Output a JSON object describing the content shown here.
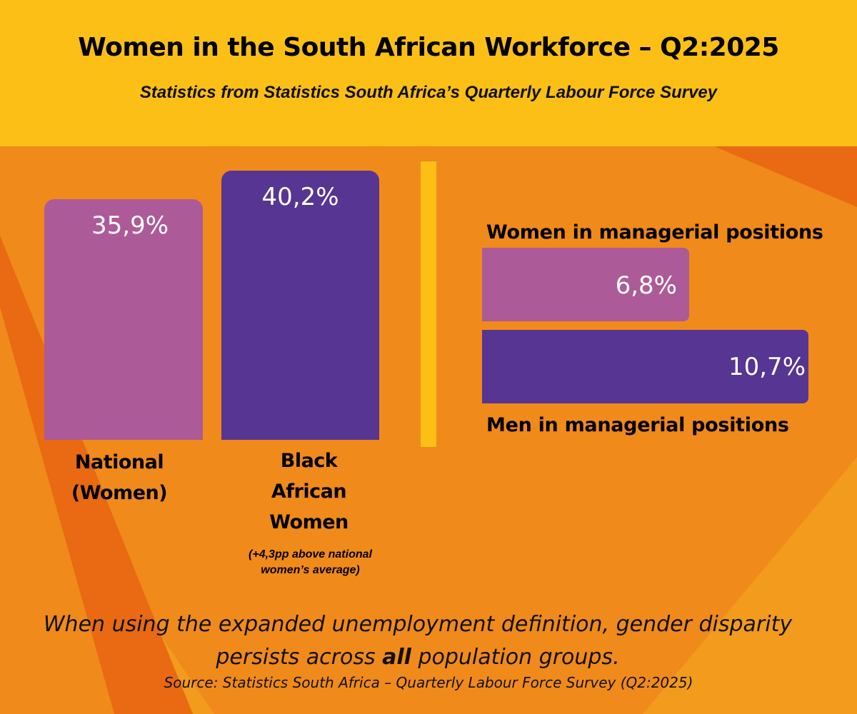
{
  "header": {
    "title": "Women in the South African Workforce – Q2:2025",
    "subtitle": "Statistics from Statistics South Africa’s Quarterly Labour Force Survey"
  },
  "colors": {
    "yellow": "#FBBF16",
    "orange": "#F08A1B",
    "dark_orange": "#E96A12",
    "pink": "#AD5A98",
    "purple": "#573592"
  },
  "chart_data": [
    {
      "type": "bar",
      "categories": [
        "National (Women)",
        "Black African Women"
      ],
      "values": [
        35.9,
        40.2
      ],
      "value_labels": [
        "35,9%",
        "40,2%"
      ],
      "category_lines": [
        [
          "National",
          "(Women)"
        ],
        [
          "Black",
          "African",
          "Women"
        ]
      ],
      "annotation": "(+4,3pp above national women’s average)",
      "ylim": [
        0,
        45
      ]
    },
    {
      "type": "bar",
      "orientation": "horizontal",
      "categories": [
        "Women in managerial positions",
        "Men in managerial positions"
      ],
      "values": [
        6.8,
        10.7
      ],
      "value_labels": [
        "6,8%",
        "10,7%"
      ],
      "xlim": [
        0,
        10.7
      ]
    }
  ],
  "footer": {
    "line1": "When using the expanded unemployment definition, gender disparity",
    "line2_before": "persists across ",
    "line2_bold": "all",
    "line2_after": " population groups.",
    "source": "Source: Statistics South Africa – Quarterly Labour Force Survey (Q2:2025)"
  }
}
